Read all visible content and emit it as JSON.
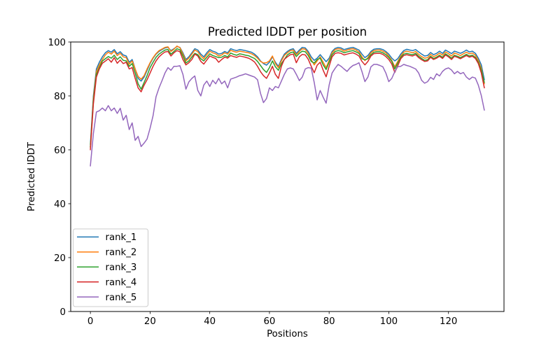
{
  "figure": {
    "background": "#ffffff",
    "text_color": "#000000",
    "spine_color": "#000000",
    "legend_border_color": "#cccccc"
  },
  "chart_data": {
    "type": "line",
    "title": "Predicted lDDT per position",
    "xlabel": "Positions",
    "ylabel": "Predicted lDDT",
    "xlim": [
      -6.6,
      138.6
    ],
    "ylim": [
      0,
      100
    ],
    "x_ticks": [
      0,
      20,
      40,
      60,
      80,
      100,
      120
    ],
    "y_ticks": [
      0,
      20,
      40,
      60,
      80,
      100
    ],
    "grid": false,
    "legend_position": "lower left",
    "series": [
      {
        "name": "rank_1",
        "color": "#1f77b4",
        "values": [
          62,
          80,
          90,
          92.5,
          94.5,
          96,
          96.8,
          96.2,
          97.2,
          95.6,
          96.4,
          95.2,
          94.8,
          92.5,
          93.5,
          90,
          86.5,
          85.5,
          87,
          89.5,
          92,
          94,
          95.5,
          96.5,
          97.2,
          97.8,
          98,
          96.8,
          97.5,
          98.3,
          98,
          96,
          93.5,
          94.5,
          96,
          97.5,
          97,
          95.5,
          94.5,
          96,
          97.2,
          96.6,
          96.2,
          95.5,
          95.8,
          96.5,
          96,
          97.5,
          97.1,
          96.8,
          97.2,
          97,
          96.8,
          96.5,
          96.2,
          95.5,
          94.5,
          93,
          92,
          91.4,
          92.5,
          94.5,
          92.5,
          91,
          93.5,
          95.5,
          96.5,
          97.2,
          97.5,
          95.8,
          97,
          98,
          97.8,
          96.5,
          94.5,
          93.2,
          94,
          95.3,
          94,
          92.7,
          94,
          96.5,
          97.6,
          98,
          97.8,
          97.2,
          97.5,
          97.8,
          98,
          97.5,
          97,
          95.5,
          94.2,
          95,
          96.5,
          97.3,
          97.5,
          97.5,
          97.2,
          96.5,
          95.5,
          94,
          93,
          93.8,
          95.5,
          96.8,
          97.3,
          97,
          96.8,
          97.2,
          96.3,
          95.5,
          94.8,
          95,
          96.1,
          95.3,
          95.8,
          96.6,
          95.8,
          97,
          96.4,
          95.7,
          96.6,
          96.2,
          95.8,
          96.3,
          97,
          96.3,
          96.6,
          95.8,
          94,
          91.5,
          86
        ]
      },
      {
        "name": "rank_2",
        "color": "#ff7f0e",
        "values": [
          61,
          79,
          89,
          91.5,
          93.5,
          95.2,
          96.2,
          95.5,
          96.6,
          95,
          95.8,
          94.5,
          94.2,
          91.8,
          93,
          90,
          87.2,
          86.2,
          87.5,
          90,
          92.3,
          94.2,
          95.7,
          96.8,
          97.4,
          98,
          98.2,
          96.5,
          97.3,
          98.5,
          97.9,
          95.5,
          93,
          94,
          95.5,
          97,
          96.4,
          94.8,
          93.8,
          95.3,
          96.6,
          96,
          95.6,
          94.8,
          95.2,
          96,
          95.5,
          96.9,
          96.5,
          96.2,
          96.6,
          96.4,
          96.2,
          96,
          95.6,
          95,
          94,
          92.8,
          92.2,
          92.3,
          93,
          94.8,
          92,
          90.5,
          93,
          95,
          96,
          96.8,
          97,
          95.3,
          96.5,
          97.5,
          97.3,
          95.8,
          93.5,
          91.5,
          93,
          94.5,
          92.5,
          90.5,
          93.2,
          96,
          97.2,
          97.5,
          97.3,
          96.6,
          97,
          97.3,
          97.5,
          97,
          96.3,
          94.5,
          93.1,
          94.2,
          96,
          96.8,
          97,
          97,
          96.6,
          96,
          94.8,
          93.2,
          90.8,
          92.8,
          94.8,
          96.2,
          96.6,
          96.3,
          96,
          96.5,
          95.4,
          94.6,
          94,
          94.2,
          95.4,
          94.6,
          95.1,
          95.9,
          95.1,
          96.3,
          95.7,
          94.8,
          95.9,
          95.5,
          95,
          95.6,
          96.2,
          95.6,
          95.9,
          95.1,
          93.2,
          90.2,
          84.5
        ]
      },
      {
        "name": "rank_3",
        "color": "#2ca02c",
        "values": [
          61,
          78,
          88,
          90.5,
          92.9,
          93.8,
          94.6,
          94,
          95.1,
          93.5,
          94.5,
          93.2,
          93,
          91,
          92,
          88.5,
          84.5,
          82.5,
          85,
          87.5,
          90.5,
          92.5,
          94.3,
          95.5,
          96.3,
          97,
          97.2,
          95.5,
          96.5,
          97.5,
          97.1,
          94.8,
          92.2,
          93,
          94.5,
          95.8,
          95.3,
          93.8,
          93,
          94.3,
          95.6,
          95,
          94.6,
          94.2,
          94.4,
          95,
          94.5,
          95.9,
          95.4,
          95.1,
          95.6,
          95.4,
          95.1,
          94.9,
          94.4,
          93.9,
          92.8,
          91.3,
          89.8,
          88.7,
          90.5,
          93,
          90.8,
          89.5,
          92,
          93.5,
          95.2,
          96,
          96.3,
          94.6,
          95.8,
          96.6,
          96.4,
          95,
          92.8,
          92.2,
          93.5,
          94,
          91.5,
          89.8,
          92.5,
          95.3,
          96.5,
          96.8,
          96.6,
          96,
          96.3,
          96.6,
          96.8,
          96.3,
          95.8,
          93.8,
          93.4,
          93.8,
          95.3,
          96.2,
          96.4,
          96.4,
          96,
          95.3,
          94.3,
          92.8,
          90,
          92.2,
          94.3,
          95.5,
          95.8,
          95.5,
          95.3,
          95.8,
          94.7,
          93.9,
          93.2,
          93.4,
          94.7,
          93.9,
          94.4,
          95.1,
          94.3,
          95.6,
          94.9,
          94,
          95.1,
          94.7,
          94.2,
          94.8,
          95.4,
          94.8,
          95.1,
          94.3,
          92.5,
          89.5,
          85
        ]
      },
      {
        "name": "rank_4",
        "color": "#d62728",
        "values": [
          60,
          77,
          87,
          90,
          92.1,
          92.9,
          93.8,
          92.5,
          94.2,
          92.1,
          93.3,
          92,
          92.5,
          90,
          90.5,
          86.5,
          83,
          81.5,
          84,
          86,
          88.5,
          91,
          93,
          94.5,
          95.5,
          96.3,
          96.5,
          94.8,
          96,
          96.8,
          96.4,
          93.5,
          91.5,
          92.3,
          93.5,
          95.5,
          94.8,
          92.8,
          91.8,
          93.3,
          94.8,
          94.3,
          93.9,
          92.5,
          93.5,
          94.4,
          94,
          95,
          94.6,
          94.3,
          94.8,
          94.6,
          94.3,
          94,
          93.4,
          92.6,
          91,
          89,
          87.5,
          86.5,
          88.5,
          91,
          88,
          86.5,
          91,
          93.6,
          94.5,
          95.3,
          95.5,
          92.3,
          94.5,
          95.4,
          95.2,
          93.6,
          91,
          88.6,
          91.4,
          92.5,
          89.5,
          87.1,
          91,
          94.5,
          95.8,
          96,
          95.8,
          95.2,
          95.5,
          95.8,
          96,
          95.5,
          94.8,
          92.8,
          91.5,
          92.8,
          94.8,
          95.7,
          95.8,
          95.8,
          95.4,
          94.6,
          93.5,
          91.8,
          88.7,
          91.2,
          93.8,
          95,
          95.3,
          95,
          94.8,
          95.3,
          94.2,
          93.4,
          92.8,
          93,
          94.3,
          93.5,
          94,
          94.7,
          93.9,
          95.2,
          94.5,
          93.5,
          94.7,
          94.3,
          93.8,
          94.4,
          95,
          94.4,
          94.7,
          93.9,
          92,
          88.5,
          83
        ]
      },
      {
        "name": "rank_5",
        "color": "#9467bd",
        "values": [
          54,
          66,
          74,
          74.5,
          75.5,
          74.5,
          76.4,
          74.5,
          75.5,
          73.5,
          75.4,
          71,
          72.8,
          67.5,
          70,
          63.5,
          65,
          61.2,
          62.5,
          64,
          68,
          72.7,
          79.7,
          83,
          85.7,
          88.5,
          90.5,
          89.5,
          91,
          91,
          91.2,
          88,
          82.5,
          85.2,
          86.5,
          87.4,
          82,
          80,
          84,
          85.5,
          83.5,
          85.8,
          84.5,
          86.5,
          84.5,
          85.5,
          83,
          86.2,
          86.6,
          87,
          87.5,
          87.8,
          88.2,
          87.8,
          87.4,
          87,
          86,
          81,
          77.5,
          79,
          83,
          82,
          83.5,
          83,
          85.5,
          88,
          90,
          90.4,
          90,
          88,
          85.7,
          87,
          90,
          90.5,
          90.3,
          85,
          78.5,
          82,
          79.5,
          77.3,
          84,
          88.5,
          90.2,
          91.7,
          91,
          90,
          89.1,
          90.4,
          91.3,
          91.7,
          92.3,
          89,
          85.3,
          87,
          90.8,
          91.7,
          91.7,
          91.3,
          90.8,
          88.5,
          85.3,
          86.5,
          89,
          90.8,
          91,
          91.7,
          91.3,
          91,
          90.5,
          90,
          88.5,
          85.8,
          84.7,
          85.3,
          86.9,
          86.1,
          88.2,
          87.4,
          89.1,
          90,
          90.4,
          89.6,
          88.2,
          89.1,
          88.2,
          88.7,
          87,
          86.1,
          87,
          86.6,
          84,
          80.1,
          74.7
        ]
      }
    ]
  }
}
